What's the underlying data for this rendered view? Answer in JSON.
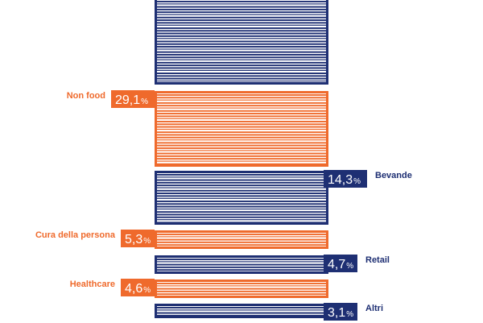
{
  "colors": {
    "navy": "#1e2f73",
    "orange": "#ef6a2c",
    "background": "#ffffff"
  },
  "chart_data": {
    "type": "bar",
    "style": "stacked-vertical-striped",
    "title": "",
    "xlabel": "",
    "ylabel": "",
    "unit": "%",
    "segments": [
      {
        "label": "",
        "value": null,
        "display": "",
        "color": "navy",
        "label_side": "none"
      },
      {
        "label": "Non food",
        "value": 29.1,
        "display": "29,1",
        "color": "orange",
        "label_side": "left"
      },
      {
        "label": "Bevande",
        "value": 14.3,
        "display": "14,3",
        "color": "navy",
        "label_side": "right"
      },
      {
        "label": "Cura della persona",
        "value": 5.3,
        "display": "5,3",
        "color": "orange",
        "label_side": "left"
      },
      {
        "label": "Retail",
        "value": 4.7,
        "display": "4,7",
        "color": "navy",
        "label_side": "right"
      },
      {
        "label": "Healthcare",
        "value": 4.6,
        "display": "4,6",
        "color": "orange",
        "label_side": "left"
      },
      {
        "label": "Altri",
        "value": 3.1,
        "display": "3,1",
        "color": "navy",
        "label_side": "right"
      }
    ]
  }
}
